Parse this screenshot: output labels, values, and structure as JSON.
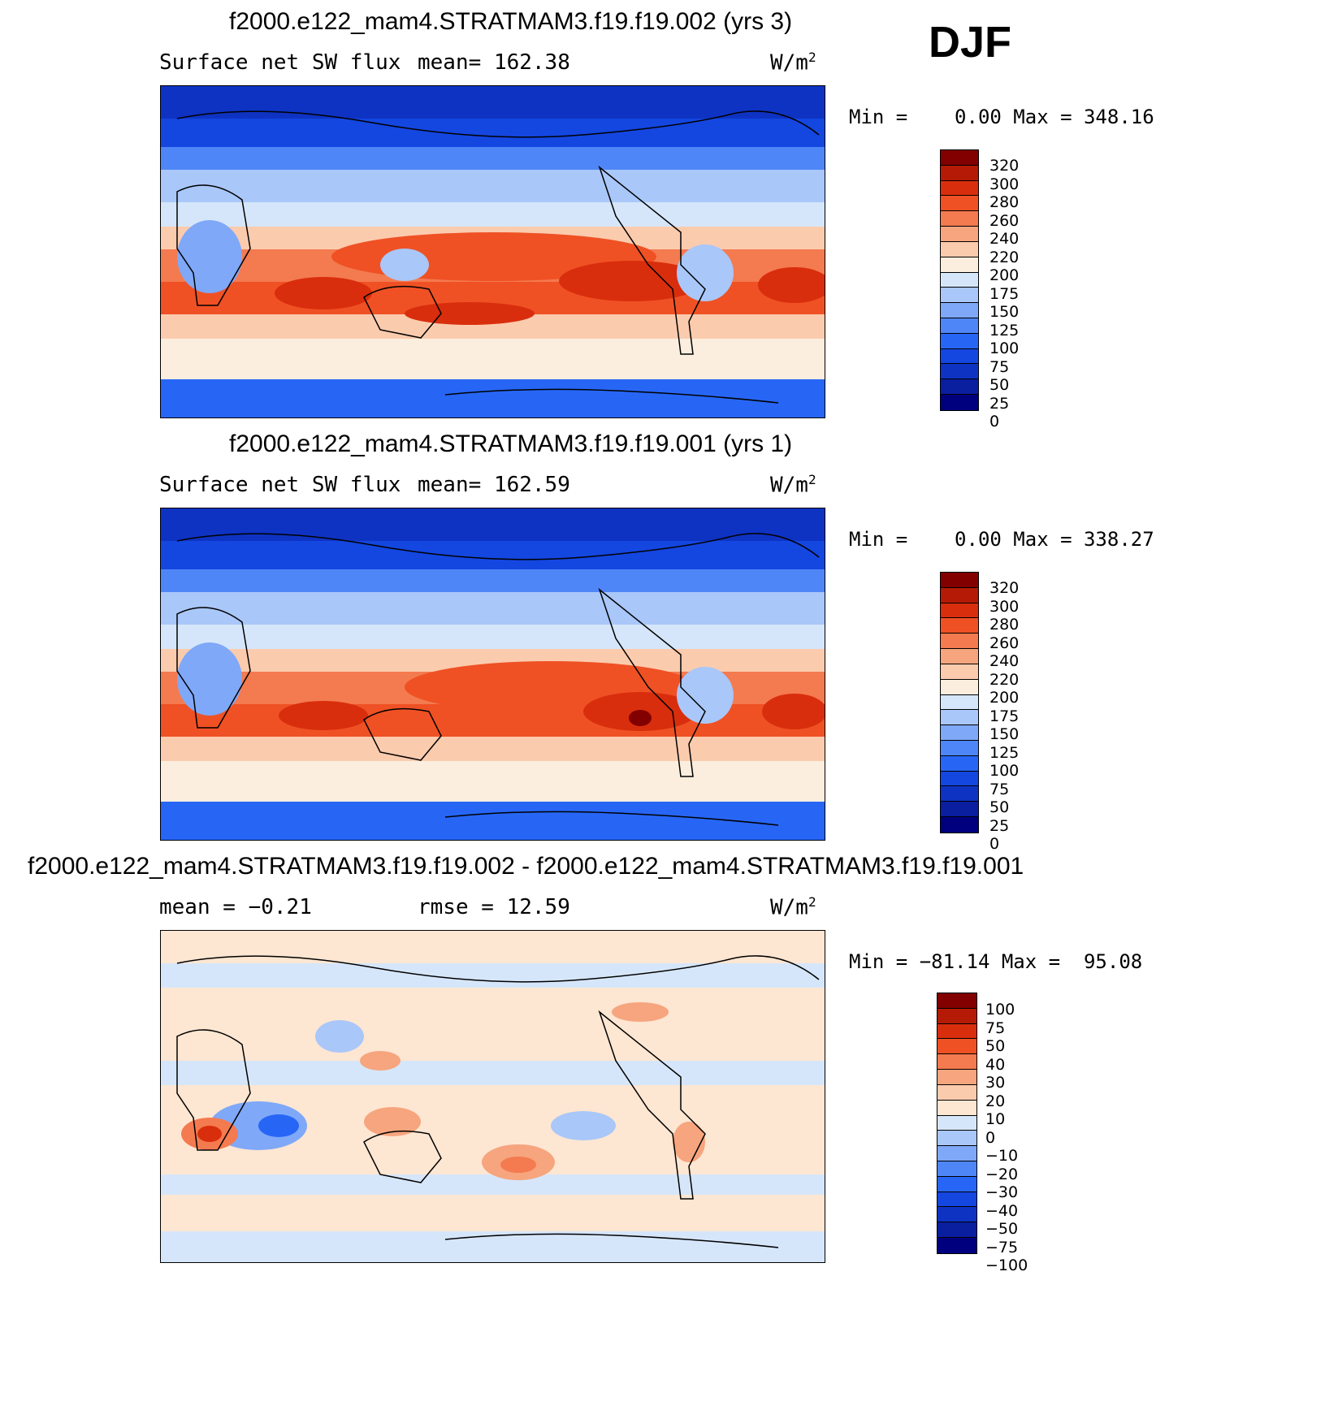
{
  "season": "DJF",
  "units": "W/m",
  "units_sup": "2",
  "colors": {
    "flux": [
      "#00007e",
      "#0a1ea0",
      "#0e33c3",
      "#1446e0",
      "#2766f5",
      "#4f86f7",
      "#7fa8f8",
      "#a9c7f9",
      "#d6e6fa",
      "#fbeede",
      "#fbcbae",
      "#f6a57e",
      "#f47a4f",
      "#ef5124",
      "#d92e0d",
      "#b51a06",
      "#820000"
    ],
    "diff": [
      "#00007e",
      "#0a1ea0",
      "#0e33c3",
      "#1446e0",
      "#2766f5",
      "#4f86f7",
      "#7fa8f8",
      "#a9c7f9",
      "#d6e6fa",
      "#fde6d2",
      "#fbcbae",
      "#f6a57e",
      "#f47a4f",
      "#ef5124",
      "#d92e0d",
      "#b51a06",
      "#820000"
    ]
  },
  "panels": [
    {
      "title": "f2000.e122_mam4.STRATMAM3.f19.f19.002 (yrs 3)",
      "left_label": "Surface net SW flux",
      "stat_label": "mean=",
      "stat_value": "162.38",
      "minmax_text": "Min =    0.00 Max = 348.16",
      "colorbar_labels": [
        "320",
        "300",
        "280",
        "260",
        "240",
        "220",
        "200",
        "175",
        "150",
        "125",
        "100",
        "75",
        "50",
        "25",
        "0"
      ]
    },
    {
      "title": "f2000.e122_mam4.STRATMAM3.f19.f19.001 (yrs 1)",
      "left_label": "Surface net SW flux",
      "stat_label": "mean=",
      "stat_value": "162.59",
      "minmax_text": "Min =    0.00 Max = 338.27",
      "colorbar_labels": [
        "320",
        "300",
        "280",
        "260",
        "240",
        "220",
        "200",
        "175",
        "150",
        "125",
        "100",
        "75",
        "50",
        "25",
        "0"
      ]
    },
    {
      "title": "f2000.e122_mam4.STRATMAM3.f19.f19.002 - f2000.e122_mam4.STRATMAM3.f19.f19.001",
      "left_label": "mean =",
      "left_value": "−0.21",
      "stat_label": "rmse =",
      "stat_value": "12.59",
      "minmax_text": "Min = −81.14 Max =  95.08",
      "colorbar_labels": [
        "100",
        "75",
        "50",
        "40",
        "30",
        "20",
        "10",
        "0",
        "−10",
        "−20",
        "−30",
        "−40",
        "−50",
        "−75",
        "−100"
      ]
    }
  ]
}
